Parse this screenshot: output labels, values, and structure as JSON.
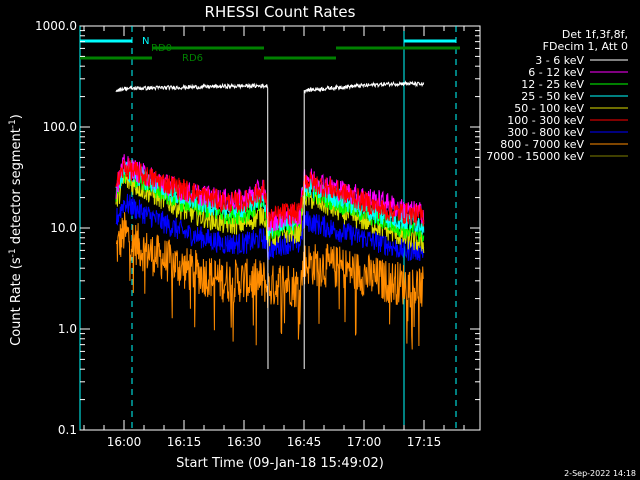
{
  "chart_data": {
    "type": "line",
    "title": "RHESSI Count Rates",
    "xlabel": "Start Time (09-Jan-18 15:49:02)",
    "ylabel_main": "Count Rate (s",
    "ylabel_exp": "-1",
    "ylabel_tail": " detector segment",
    "ylabel_exp2": "-1",
    "ylabel_close": ")",
    "y_scale": "log",
    "ylim": [
      0.1,
      1000
    ],
    "xlim": [
      "15:49",
      "17:29"
    ],
    "y_ticks": [
      {
        "value": 0.1,
        "label": "0.1"
      },
      {
        "value": 1,
        "label": "1.0"
      },
      {
        "value": 10,
        "label": "10.0"
      },
      {
        "value": 100,
        "label": "100.0"
      },
      {
        "value": 1000,
        "label": "1000.0"
      }
    ],
    "x_ticks": [
      {
        "value": "16:00",
        "label": "16:00"
      },
      {
        "value": "16:15",
        "label": "16:15"
      },
      {
        "value": "16:30",
        "label": "16:30"
      },
      {
        "value": "16:45",
        "label": "16:45"
      },
      {
        "value": "17:00",
        "label": "17:00"
      },
      {
        "value": "17:15",
        "label": "17:15"
      }
    ],
    "legend_title": [
      "Det 1f,3f,8f,",
      "FDecim 1, Att 0"
    ],
    "legend_position": "right",
    "series": [
      {
        "name": "3 - 6 keV",
        "color": "#ffffff",
        "gaps": [
          [
            "16:36",
            "16:45"
          ]
        ],
        "points": [
          [
            "15:58",
            "230"
          ],
          [
            "16:00",
            "240"
          ],
          [
            "16:10",
            "245"
          ],
          [
            "16:20",
            "250"
          ],
          [
            "16:30",
            "255"
          ],
          [
            "16:36",
            "255"
          ],
          [
            "16:45",
            "230"
          ],
          [
            "16:55",
            "250"
          ],
          [
            "17:05",
            "265"
          ],
          [
            "17:10",
            "270"
          ],
          [
            "17:15",
            "265"
          ]
        ]
      },
      {
        "name": "6 - 12 keV",
        "color": "#ff00ff",
        "points": [
          [
            "15:58",
            "25"
          ],
          [
            "16:00",
            "42"
          ],
          [
            "16:05",
            "34"
          ],
          [
            "16:15",
            "23"
          ],
          [
            "16:25",
            "19"
          ],
          [
            "16:30",
            "19"
          ],
          [
            "16:35",
            "25"
          ],
          [
            "16:36",
            "11"
          ],
          [
            "16:40",
            "13"
          ],
          [
            "16:44",
            "13"
          ],
          [
            "16:45",
            "33"
          ],
          [
            "16:55",
            "23"
          ],
          [
            "17:05",
            "18"
          ],
          [
            "17:10",
            "15"
          ],
          [
            "17:15",
            "14"
          ]
        ]
      },
      {
        "name": "12 - 25 keV",
        "color": "#00ff00",
        "points": [
          [
            "15:58",
            "22"
          ],
          [
            "16:00",
            "36"
          ],
          [
            "16:05",
            "29"
          ],
          [
            "16:15",
            "18"
          ],
          [
            "16:25",
            "14"
          ],
          [
            "16:30",
            "14"
          ],
          [
            "16:35",
            "18"
          ],
          [
            "16:36",
            "9"
          ],
          [
            "16:40",
            "11"
          ],
          [
            "16:44",
            "11"
          ],
          [
            "16:45",
            "25"
          ],
          [
            "16:55",
            "17"
          ],
          [
            "17:05",
            "12"
          ],
          [
            "17:10",
            "10"
          ],
          [
            "17:15",
            "9"
          ]
        ]
      },
      {
        "name": "25 - 50 keV",
        "color": "#00ffff",
        "points": [
          [
            "15:58",
            "24"
          ],
          [
            "16:00",
            "38"
          ],
          [
            "16:05",
            "31"
          ],
          [
            "16:15",
            "20"
          ],
          [
            "16:25",
            "16"
          ],
          [
            "16:30",
            "16"
          ],
          [
            "16:35",
            "21"
          ],
          [
            "16:36",
            "10"
          ],
          [
            "16:40",
            "12"
          ],
          [
            "16:44",
            "12"
          ],
          [
            "16:45",
            "27"
          ],
          [
            "16:55",
            "19"
          ],
          [
            "17:05",
            "13"
          ],
          [
            "17:10",
            "12"
          ],
          [
            "17:15",
            "11"
          ]
        ]
      },
      {
        "name": "50 - 100 keV",
        "color": "#dddd00",
        "points": [
          [
            "15:58",
            "18"
          ],
          [
            "16:00",
            "30"
          ],
          [
            "16:05",
            "24"
          ],
          [
            "16:15",
            "15"
          ],
          [
            "16:25",
            "11"
          ],
          [
            "16:30",
            "11"
          ],
          [
            "16:35",
            "14"
          ],
          [
            "16:36",
            "8"
          ],
          [
            "16:40",
            "9"
          ],
          [
            "16:44",
            "9"
          ],
          [
            "16:45",
            "21"
          ],
          [
            "16:55",
            "14"
          ],
          [
            "17:05",
            "10"
          ],
          [
            "17:10",
            "8"
          ],
          [
            "17:15",
            "7"
          ]
        ]
      },
      {
        "name": "100 - 300 keV",
        "color": "#ff0000",
        "points": [
          [
            "15:58",
            "26"
          ],
          [
            "16:00",
            "40"
          ],
          [
            "16:05",
            "33"
          ],
          [
            "16:15",
            "24"
          ],
          [
            "16:25",
            "18"
          ],
          [
            "16:30",
            "18"
          ],
          [
            "16:35",
            "24"
          ],
          [
            "16:36",
            "12"
          ],
          [
            "16:40",
            "14"
          ],
          [
            "16:44",
            "14"
          ],
          [
            "16:45",
            "30"
          ],
          [
            "16:55",
            "22"
          ],
          [
            "17:05",
            "15"
          ],
          [
            "17:10",
            "14"
          ],
          [
            "17:15",
            "13"
          ]
        ]
      },
      {
        "name": "300 - 800 keV",
        "color": "#0000ff",
        "points": [
          [
            "15:58",
            "12"
          ],
          [
            "16:00",
            "18"
          ],
          [
            "16:05",
            "14"
          ],
          [
            "16:15",
            "9"
          ],
          [
            "16:25",
            "7"
          ],
          [
            "16:30",
            "7"
          ],
          [
            "16:35",
            "8"
          ],
          [
            "16:36",
            "6"
          ],
          [
            "16:40",
            "7"
          ],
          [
            "16:44",
            "7"
          ],
          [
            "16:45",
            "12"
          ],
          [
            "16:55",
            "9"
          ],
          [
            "17:05",
            "7"
          ],
          [
            "17:10",
            "6"
          ],
          [
            "17:15",
            "6"
          ]
        ]
      },
      {
        "name": "800 - 7000 keV",
        "color": "#ff8c00",
        "points": [
          [
            "15:58",
            "6"
          ],
          [
            "16:00",
            "9"
          ],
          [
            "16:05",
            "6"
          ],
          [
            "16:15",
            "4"
          ],
          [
            "16:25",
            "3"
          ],
          [
            "16:30",
            "3"
          ],
          [
            "16:35",
            "3"
          ],
          [
            "16:36",
            "2.5"
          ],
          [
            "16:40",
            "3"
          ],
          [
            "16:44",
            "2.5"
          ],
          [
            "16:45",
            "4.5"
          ],
          [
            "16:55",
            "4"
          ],
          [
            "17:05",
            "3"
          ],
          [
            "17:10",
            "2.8"
          ],
          [
            "17:15",
            "2.5"
          ]
        ]
      },
      {
        "name": "7000 - 15000 keV",
        "color": "#808000",
        "points": []
      }
    ],
    "vertical_markers": [
      {
        "time": "15:49",
        "style": "solid",
        "color": "#00ffff"
      },
      {
        "time": "16:02",
        "style": "dashed",
        "color": "#00ffff"
      },
      {
        "time": "17:10",
        "style": "solid",
        "color": "#00ffff"
      },
      {
        "time": "17:23",
        "style": "dashed",
        "color": "#00ffff"
      }
    ],
    "flag_bars": [
      {
        "label": "",
        "color": "#00ffff",
        "level": "top",
        "spans": [
          [
            "15:49",
            "16:02"
          ],
          [
            "17:10",
            "17:23"
          ]
        ]
      },
      {
        "label": "N",
        "color": "#00ffff",
        "level": "top",
        "spans": []
      },
      {
        "label": "RD0",
        "color": "#008000",
        "level": "mid",
        "spans": [
          [
            "16:07",
            "16:35"
          ],
          [
            "16:53",
            "17:24"
          ]
        ]
      },
      {
        "label": "RD6",
        "color": "#008000",
        "level": "low",
        "spans": [
          [
            "15:49",
            "16:07"
          ],
          [
            "16:35",
            "16:53"
          ]
        ]
      }
    ],
    "footer_timestamp": "2-Sep-2022 14:18"
  }
}
